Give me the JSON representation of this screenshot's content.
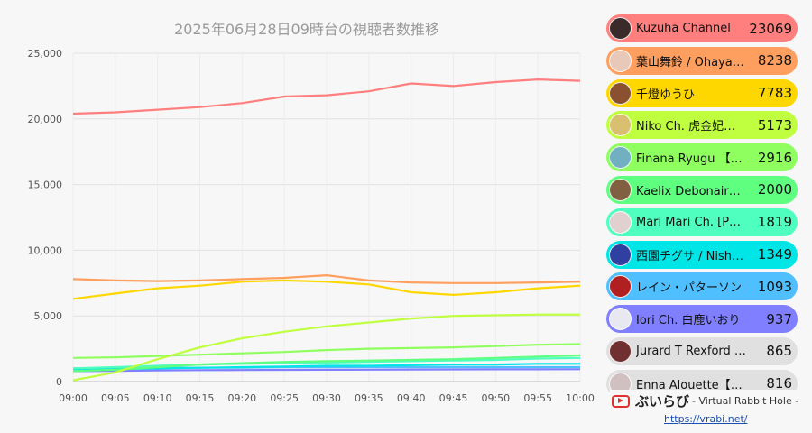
{
  "chart_data": {
    "type": "line",
    "title": "2025年06月28日09時台の視聴者数推移",
    "xlabel": "",
    "ylabel": "",
    "x_ticks": [
      "09:00",
      "09:05",
      "09:10",
      "09:15",
      "09:20",
      "09:25",
      "09:30",
      "09:35",
      "09:40",
      "09:45",
      "09:50",
      "09:55",
      "10:00"
    ],
    "xlim_minutes": [
      0,
      60
    ],
    "ylim": [
      0,
      25000
    ],
    "y_ticks": [
      0,
      5000,
      10000,
      15000,
      20000,
      25000
    ],
    "y_tick_labels": [
      "0",
      "5,000",
      "10,000",
      "15,000",
      "20,000",
      "25,000"
    ],
    "grid": true,
    "series": [
      {
        "name": "Kuzuha Channel",
        "color": "#ff7f7f",
        "x": [
          0,
          5,
          10,
          15,
          20,
          25,
          30,
          35,
          40,
          45,
          50,
          55,
          60
        ],
        "values": [
          20400,
          20500,
          20700,
          20900,
          21200,
          21700,
          21800,
          22100,
          22700,
          22500,
          22800,
          23000,
          22900
        ]
      },
      {
        "name": "葉山舞鈴 / Ohayama Mai",
        "color": "#ff9f5f",
        "x": [
          0,
          5,
          10,
          15,
          20,
          25,
          30,
          35,
          40,
          45,
          50,
          55,
          60
        ],
        "values": [
          7800,
          7700,
          7650,
          7700,
          7800,
          7900,
          8100,
          7700,
          7550,
          7500,
          7500,
          7550,
          7600
        ]
      },
      {
        "name": "千燈ゆうひ",
        "color": "#ffd700",
        "x": [
          0,
          5,
          10,
          15,
          20,
          25,
          30,
          35,
          40,
          45,
          50,
          55,
          60
        ],
        "values": [
          6300,
          6700,
          7100,
          7300,
          7600,
          7700,
          7600,
          7400,
          6800,
          6600,
          6800,
          7100,
          7300
        ]
      },
      {
        "name": "Niko Ch. 虎金妃笑虎",
        "color": "#bfff3f",
        "x": [
          0,
          5,
          10,
          15,
          20,
          25,
          30,
          35,
          40,
          45,
          50,
          55,
          60
        ],
        "values": [
          100,
          700,
          1700,
          2600,
          3300,
          3800,
          4200,
          4500,
          4800,
          5000,
          5050,
          5100,
          5100
        ]
      },
      {
        "name": "Finana Ryugu 【NIJISANJI EN】",
        "color": "#8fff5f",
        "x": [
          0,
          5,
          10,
          15,
          20,
          25,
          30,
          35,
          40,
          45,
          50,
          55,
          60
        ],
        "values": [
          1800,
          1850,
          1950,
          2050,
          2150,
          2250,
          2400,
          2500,
          2550,
          2600,
          2700,
          2800,
          2850
        ]
      },
      {
        "name": "Kaelix Debonair【NIJISANJI EN】",
        "color": "#5fff7f",
        "x": [
          0,
          5,
          10,
          15,
          20,
          25,
          30,
          35,
          40,
          45,
          50,
          55,
          60
        ],
        "values": [
          800,
          900,
          1100,
          1300,
          1400,
          1500,
          1550,
          1600,
          1650,
          1700,
          1800,
          1900,
          2000
        ]
      },
      {
        "name": "Mari Mari Ch. [Phase Connect]",
        "color": "#4fffbf",
        "x": [
          0,
          5,
          10,
          15,
          20,
          25,
          30,
          35,
          40,
          45,
          50,
          55,
          60
        ],
        "values": [
          1000,
          1100,
          1200,
          1300,
          1350,
          1400,
          1450,
          1500,
          1550,
          1600,
          1650,
          1750,
          1800
        ]
      },
      {
        "name": "西園チグサ / Nishizono Chigusa",
        "color": "#00e5e5",
        "x": [
          0,
          5,
          10,
          15,
          20,
          25,
          30,
          35,
          40,
          45,
          50,
          55,
          60
        ],
        "values": [
          900,
          950,
          1000,
          1050,
          1100,
          1150,
          1200,
          1200,
          1250,
          1300,
          1300,
          1350,
          1350
        ]
      },
      {
        "name": "レイン・パターソン",
        "color": "#4fbfff",
        "x": [
          0,
          5,
          10,
          15,
          20,
          25,
          30,
          35,
          40,
          45,
          50,
          55,
          60
        ],
        "values": [
          1000,
          1000,
          1050,
          1050,
          1050,
          1100,
          1100,
          1100,
          1100,
          1100,
          1100,
          1100,
          1100
        ]
      },
      {
        "name": "Iori Ch. 白鹿いおり",
        "color": "#7f7fff",
        "x": [
          0,
          5,
          10,
          15,
          20,
          25,
          30,
          35,
          40,
          45,
          50,
          55,
          60
        ],
        "values": [
          800,
          820,
          850,
          870,
          880,
          890,
          900,
          910,
          920,
          930,
          935,
          937,
          940
        ]
      }
    ]
  },
  "ranking": [
    {
      "name": "Kuzuha Channel",
      "value": "23069",
      "color": "#ff7f7f",
      "avatar_color": "#3a2a2a"
    },
    {
      "name": "葉山舞鈴 / Ohayama Mai",
      "value": "8238",
      "color": "#ff9f5f",
      "avatar_color": "#e8c8b8"
    },
    {
      "name": "千燈ゆうひ",
      "value": "7783",
      "color": "#ffd700",
      "avatar_color": "#8a5030"
    },
    {
      "name": "Niko Ch. 虎金妃笑虎",
      "value": "5173",
      "color": "#bfff3f",
      "avatar_color": "#d8c070"
    },
    {
      "name": "Finana Ryugu 【NIJISANJI EN】",
      "value": "2916",
      "color": "#8fff5f",
      "avatar_color": "#70b0c0"
    },
    {
      "name": "Kaelix Debonair【NIJISANJI EN】",
      "value": "2000",
      "color": "#5fff7f",
      "avatar_color": "#806040"
    },
    {
      "name": "Mari Mari Ch. [Phase Connect]",
      "value": "1819",
      "color": "#4fffbf",
      "avatar_color": "#e0d0d0"
    },
    {
      "name": "西園チグサ / Nishizono Chigusa",
      "value": "1349",
      "color": "#00e5e5",
      "avatar_color": "#3040a0"
    },
    {
      "name": "レイン・パターソン",
      "value": "1093",
      "color": "#4fbfff",
      "avatar_color": "#b02020"
    },
    {
      "name": "Iori Ch. 白鹿いおり",
      "value": "937",
      "color": "#7f7fff",
      "avatar_color": "#e8e8f0"
    },
    {
      "name": "Jurard T Rexford Ch.",
      "value": "865",
      "color": "#e0e0e0",
      "avatar_color": "#703030"
    },
    {
      "name": "Enna Alouette【NIJISANJI EN】",
      "value": "816",
      "color": "#e0e0e0",
      "avatar_color": "#d0c0c0"
    }
  ],
  "footer": {
    "icon": "youtube-play-icon",
    "brand": "ぶいらび",
    "tagline": "- Virtual Rabbit Hole -",
    "link": "https://vrabi.net/"
  }
}
